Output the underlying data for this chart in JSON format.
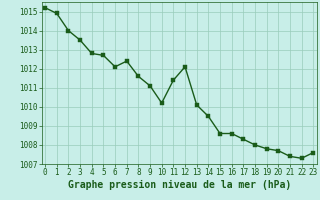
{
  "x": [
    0,
    1,
    2,
    3,
    4,
    5,
    6,
    7,
    8,
    9,
    10,
    11,
    12,
    13,
    14,
    15,
    16,
    17,
    18,
    19,
    20,
    21,
    22,
    23
  ],
  "y": [
    1015.2,
    1014.9,
    1014.0,
    1013.5,
    1012.8,
    1012.7,
    1012.1,
    1012.4,
    1011.6,
    1011.1,
    1010.2,
    1011.4,
    1012.1,
    1010.1,
    1009.5,
    1008.6,
    1008.6,
    1008.3,
    1008.0,
    1007.8,
    1007.7,
    1007.4,
    1007.3,
    1007.6
  ],
  "ylim": [
    1007,
    1015.5
  ],
  "xlim": [
    -0.3,
    23.3
  ],
  "yticks": [
    1007,
    1008,
    1009,
    1010,
    1011,
    1012,
    1013,
    1014,
    1015
  ],
  "xticks": [
    0,
    1,
    2,
    3,
    4,
    5,
    6,
    7,
    8,
    9,
    10,
    11,
    12,
    13,
    14,
    15,
    16,
    17,
    18,
    19,
    20,
    21,
    22,
    23
  ],
  "line_color": "#1a5c1a",
  "marker_color": "#1a5c1a",
  "bg_color": "#c8eee8",
  "grid_color": "#99ccbb",
  "xlabel": "Graphe pression niveau de la mer (hPa)",
  "xlabel_color": "#1a5c1a",
  "xlabel_fontsize": 7,
  "tick_fontsize": 5.5,
  "line_width": 1.0,
  "marker_size": 2.5
}
